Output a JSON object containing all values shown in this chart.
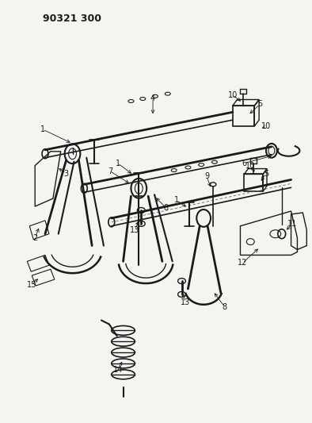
{
  "title": "90321 300",
  "bg": "#f5f5f0",
  "lc": "#1a1a1a",
  "fig_w": 3.94,
  "fig_h": 5.33,
  "dpi": 100
}
